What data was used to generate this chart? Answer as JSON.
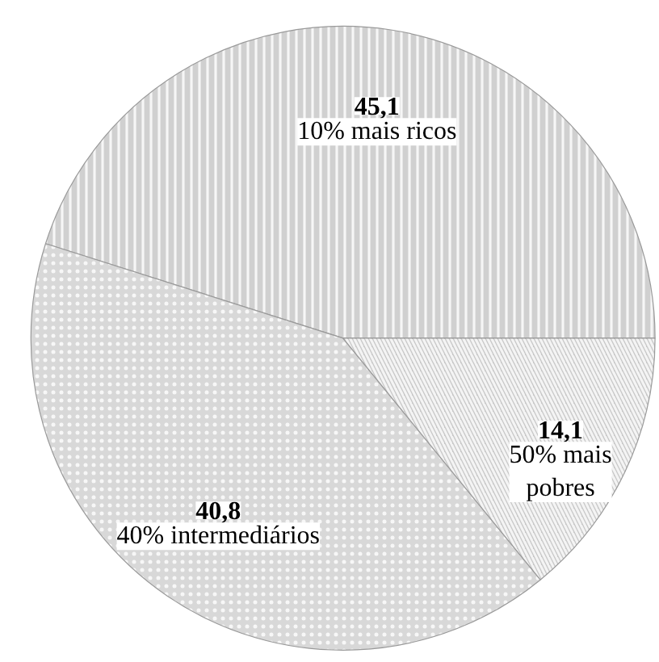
{
  "chart_data": {
    "type": "pie",
    "categories": [
      "10% mais ricos",
      "40% intermediários",
      "50% mais pobres"
    ],
    "values": [
      45.1,
      40.8,
      14.1
    ],
    "colors": [
      "#d0d0d0",
      "#d8d8d8",
      "#c8c8c8"
    ],
    "value_labels": [
      "45,1",
      "40,8",
      "14,1"
    ]
  }
}
